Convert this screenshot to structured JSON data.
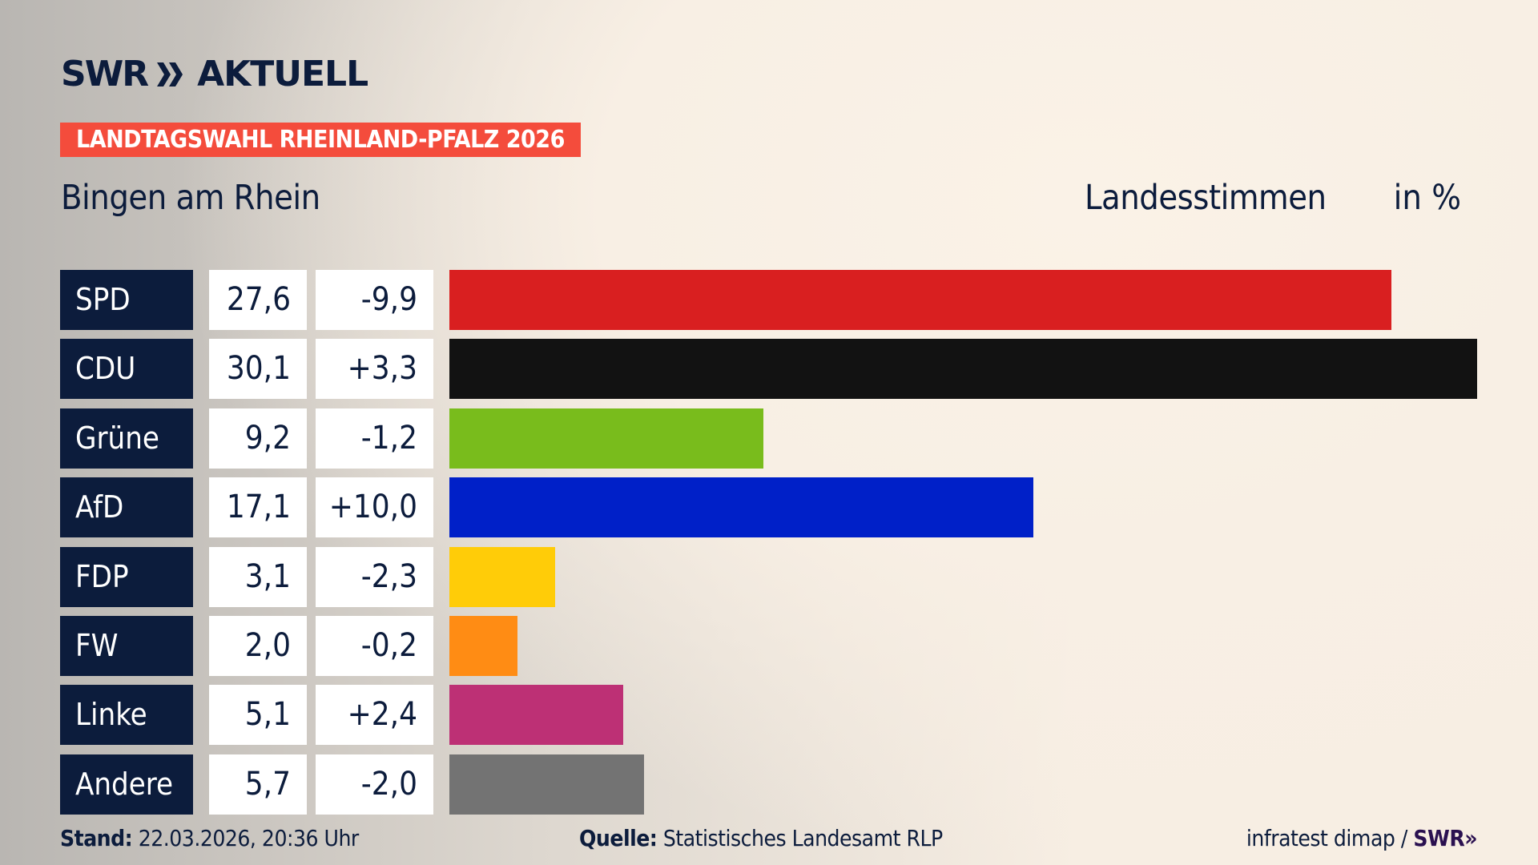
{
  "header": {
    "logo": "SWR AKTUELL",
    "logo_swr": "SWR",
    "logo_aktuell": "AKTUELL",
    "banner": "LANDTAGSWAHL RHEINLAND-PFALZ 2026",
    "region": "Bingen am Rhein",
    "vote_type": "Landesstimmen",
    "unit": "in %"
  },
  "chart_data": {
    "type": "bar",
    "orientation": "horizontal",
    "categories": [
      "SPD",
      "CDU",
      "Grüne",
      "AfD",
      "FDP",
      "FW",
      "Linke",
      "Andere"
    ],
    "values": [
      27.6,
      30.1,
      9.2,
      17.1,
      3.1,
      2.0,
      5.1,
      5.7
    ],
    "value_labels": [
      "27,6",
      "30,1",
      "9,2",
      "17,1",
      "3,1",
      "2,0",
      "5,1",
      "5,7"
    ],
    "change_labels": [
      "-9,9",
      "+3,3",
      "-1,2",
      "+10,0",
      "-2,3",
      "-0,2",
      "+2,4",
      "-2,0"
    ],
    "changes": [
      -9.9,
      3.3,
      -1.2,
      10.0,
      -2.3,
      -0.2,
      2.4,
      -2.0
    ],
    "colors": [
      "#d91f20",
      "#121212",
      "#79bc1c",
      "#0020c8",
      "#ffcc08",
      "#ff8c14",
      "#bd3075",
      "#737373"
    ],
    "xlim": [
      0,
      30.1
    ],
    "grid": false
  },
  "footer": {
    "stand_label": "Stand:",
    "stand_value": "22.03.2026, 20:36 Uhr",
    "source_label": "Quelle:",
    "source_value": "Statistisches Landesamt RLP",
    "credit": "infratest dimap /",
    "credit_logo": "SWR"
  },
  "colors": {
    "navy": "#0c1c3c",
    "banner": "#f44c3c"
  }
}
